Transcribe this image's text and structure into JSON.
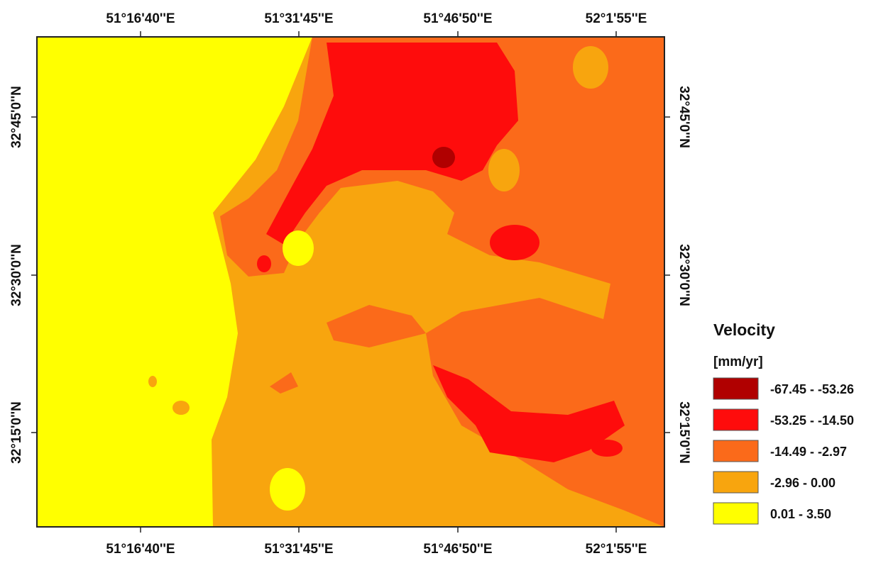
{
  "map": {
    "top_labels": [
      "51°16'40''E",
      "51°31'45''E",
      "51°46'50''E",
      "52°1'55''E"
    ],
    "bottom_labels": [
      "51°16'40''E",
      "51°31'45''E",
      "51°46'50''E",
      "52°1'55''E"
    ],
    "left_labels": [
      "32°45'0''N",
      "32°30'0''N",
      "32°15'0''N"
    ],
    "right_labels": [
      "32°45'0''N",
      "32°30'0''N",
      "32°15'0''N"
    ]
  },
  "legend": {
    "title": "Velocity",
    "unit": "[mm/yr]",
    "items": [
      {
        "label": "-67.45 - -53.26",
        "color": "#b00000"
      },
      {
        "label": "-53.25 - -14.50",
        "color": "#fe0c0c"
      },
      {
        "label": "-14.49 - -2.97",
        "color": "#fb6a1a"
      },
      {
        "label": "-2.96 - 0.00",
        "color": "#f8a50e"
      },
      {
        "label": "0.01 - 3.50",
        "color": "#ffff00"
      }
    ]
  }
}
